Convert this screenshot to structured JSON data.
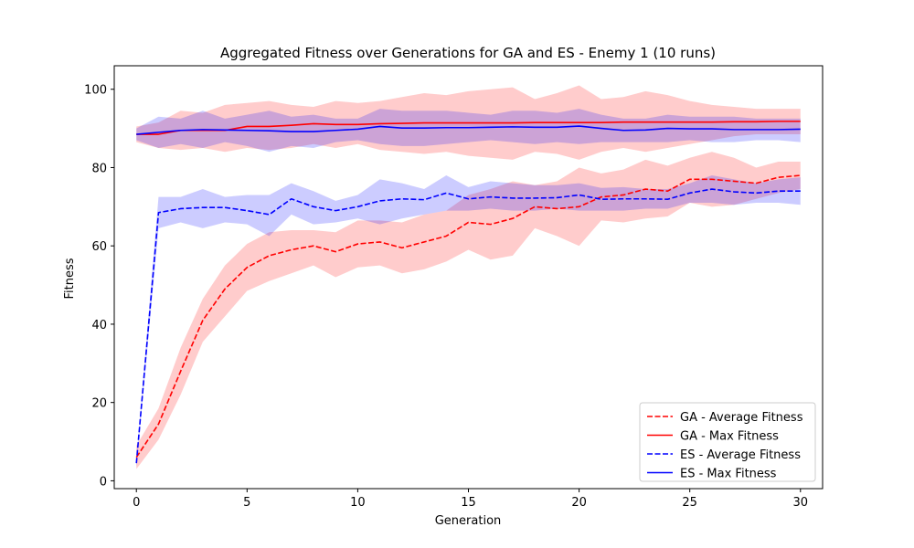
{
  "chart_data": {
    "type": "line",
    "title": "Aggregated Fitness over Generations for GA and ES - Enemy 1 (10 runs)",
    "xlabel": "Generation",
    "ylabel": "Fitness",
    "xlim": [
      -1.0,
      31.0
    ],
    "ylim": [
      -2.0,
      106.0
    ],
    "xticks": [
      0,
      5,
      10,
      15,
      20,
      25,
      30
    ],
    "yticks": [
      0,
      20,
      40,
      60,
      80,
      100
    ],
    "grid": false,
    "legend_position": "lower-right",
    "x": [
      0,
      1,
      2,
      3,
      4,
      5,
      6,
      7,
      8,
      9,
      10,
      11,
      12,
      13,
      14,
      15,
      16,
      17,
      18,
      19,
      20,
      21,
      22,
      23,
      24,
      25,
      26,
      27,
      28,
      29,
      30
    ],
    "series": [
      {
        "name": "GA - Average Fitness",
        "color": "#ff0000",
        "dash": "dashed",
        "values": [
          6,
          14.5,
          28,
          41,
          49,
          54.5,
          57.5,
          59,
          60,
          58.5,
          60.5,
          61,
          59.5,
          61,
          62.5,
          66,
          65.5,
          67,
          70,
          69.5,
          70,
          72.5,
          73,
          74.5,
          74,
          77,
          77,
          76.5,
          76,
          77.5,
          78
        ],
        "band_lower": [
          3,
          10.5,
          22,
          35.5,
          42,
          48.5,
          51,
          53,
          55,
          52,
          54.5,
          55,
          53,
          54,
          56,
          59,
          56.5,
          57.5,
          64.5,
          62.5,
          60,
          66.5,
          66,
          67,
          67.5,
          71,
          70,
          70.5,
          72,
          73.5,
          74.5
        ],
        "band_upper": [
          9,
          18.5,
          34,
          46.5,
          55,
          60.5,
          63.5,
          64,
          64,
          63.5,
          66.5,
          66.5,
          66,
          68,
          69,
          73,
          74.5,
          76.5,
          75.5,
          76.5,
          80,
          78.5,
          79.5,
          82,
          80.5,
          82.5,
          84,
          82.5,
          80,
          81.5,
          81.5
        ]
      },
      {
        "name": "GA - Max Fitness",
        "color": "#ff0000",
        "dash": "solid",
        "values": [
          88.5,
          88.5,
          89.5,
          89.5,
          89.5,
          90.5,
          90.5,
          90.8,
          91.2,
          91,
          91,
          91.2,
          91.3,
          91.4,
          91.4,
          91.4,
          91.4,
          91.4,
          91.5,
          91.5,
          91.5,
          91.5,
          91.6,
          91.6,
          91.6,
          91.6,
          91.6,
          91.7,
          91.7,
          91.8,
          91.8
        ],
        "band_lower": [
          86.5,
          85,
          84.5,
          85,
          84,
          85,
          84.5,
          85,
          86,
          85,
          86,
          84.5,
          84,
          83.5,
          84,
          83,
          82.5,
          82,
          84,
          83.5,
          82,
          84,
          85,
          84,
          85,
          86,
          87,
          88,
          88.5,
          88.5,
          88.5
        ],
        "band_upper": [
          90.5,
          91.5,
          94.5,
          94,
          96,
          96.5,
          97,
          96,
          95.5,
          97,
          96.5,
          97,
          98,
          99,
          98.5,
          99.5,
          100,
          100.5,
          97.5,
          99,
          101,
          97.5,
          98,
          99.5,
          98.5,
          97,
          96,
          95.5,
          95,
          95,
          95
        ]
      },
      {
        "name": "ES - Average Fitness",
        "color": "#0000ff",
        "dash": "dashed",
        "values": [
          4.5,
          68.5,
          69.5,
          69.8,
          69.8,
          69,
          68,
          72,
          70,
          69,
          70,
          71.5,
          72,
          71.8,
          73.5,
          72,
          72.5,
          72.2,
          72.2,
          72.3,
          73,
          71.9,
          72,
          72,
          71.9,
          73.5,
          74.5,
          73.8,
          73.5,
          74,
          74
        ],
        "band_lower": [
          3.5,
          64.5,
          66,
          64.5,
          66,
          65.5,
          62.5,
          68,
          65.5,
          66,
          67,
          65.5,
          67,
          68,
          69,
          69,
          69.5,
          69,
          69,
          69.5,
          69,
          69,
          69,
          69.5,
          69.5,
          71,
          71,
          70.5,
          71,
          71,
          70.5
        ],
        "band_upper": [
          5.5,
          72.5,
          72.5,
          74.5,
          72.5,
          73,
          73,
          76,
          74,
          71.5,
          73,
          77,
          76,
          74.5,
          78,
          75,
          76.5,
          76,
          75.5,
          75.5,
          76,
          74.8,
          75,
          74.5,
          74.5,
          76,
          78,
          77,
          76,
          77,
          77.5
        ]
      },
      {
        "name": "ES - Max Fitness",
        "color": "#0000ff",
        "dash": "solid",
        "values": [
          88.5,
          89,
          89.5,
          89.7,
          89.6,
          89.5,
          89.4,
          89.2,
          89.2,
          89.5,
          89.8,
          90.5,
          90.1,
          90.1,
          90.2,
          90.2,
          90.3,
          90.4,
          90.3,
          90.3,
          90.6,
          90,
          89.5,
          89.6,
          90,
          89.9,
          89.9,
          89.7,
          89.7,
          89.7,
          89.8
        ],
        "band_lower": [
          87,
          85,
          86,
          85,
          86.5,
          85.5,
          84,
          85.5,
          85,
          86.5,
          87,
          86,
          85.5,
          85.5,
          86,
          86.5,
          87,
          86.5,
          86,
          86.5,
          86,
          86.5,
          86.5,
          86.5,
          86.5,
          87,
          86.5,
          86.5,
          87,
          87,
          86.5
        ],
        "band_upper": [
          90,
          93,
          92.5,
          94.5,
          92.5,
          93.5,
          94.5,
          93,
          93.5,
          92.5,
          92.5,
          95,
          94.5,
          94.5,
          94.5,
          94,
          93.5,
          94.5,
          94.5,
          94,
          95,
          93.5,
          92.5,
          92.5,
          93.5,
          93,
          93,
          93,
          92.5,
          92.5,
          92.5
        ]
      }
    ],
    "fill_order": [
      "GA - Max Fitness",
      "GA - Average Fitness",
      "ES - Max Fitness",
      "ES - Average Fitness"
    ]
  }
}
